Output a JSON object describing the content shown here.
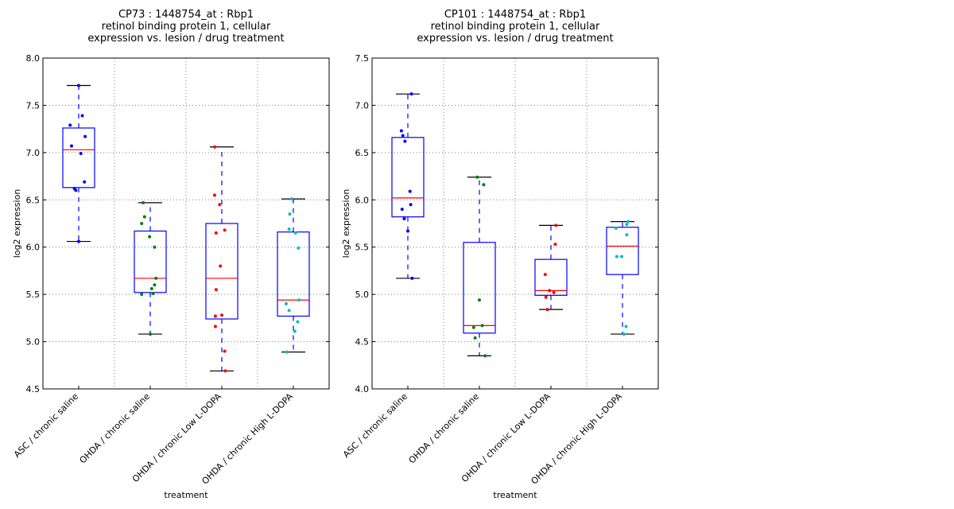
{
  "chart_data": [
    {
      "type": "box",
      "title_lines": [
        "CP73 : 1448754_at : Rbp1",
        "retinol binding protein 1, cellular",
        "expression vs. lesion / drug treatment"
      ],
      "xlabel": "treatment",
      "ylabel": "log2 expression",
      "ylim": [
        4.5,
        8.0
      ],
      "yticks": [
        "4.5",
        "5.0",
        "5.5",
        "6.0",
        "6.5",
        "7.0",
        "7.5",
        "8.0"
      ],
      "grid": true,
      "categories": [
        "ASC / chronic saline",
        "OHDA / chronic saline",
        "OHDA / chronic Low L-DOPA",
        "OHDA / chronic High L-DOPA"
      ],
      "groups": [
        {
          "color": "#0000ff",
          "whisker_low": 6.06,
          "q1": 6.63,
          "median": 7.03,
          "q3": 7.26,
          "whisker_high": 7.71,
          "points": [
            [
              0.0,
              7.71
            ],
            [
              0.05,
              7.39
            ],
            [
              -0.12,
              7.29
            ],
            [
              0.09,
              7.17
            ],
            [
              -0.1,
              7.07
            ],
            [
              0.03,
              6.99
            ],
            [
              0.08,
              6.69
            ],
            [
              -0.06,
              6.62
            ],
            [
              -0.04,
              6.6
            ],
            [
              0.0,
              6.06
            ]
          ]
        },
        {
          "color": "#008000",
          "whisker_low": 5.08,
          "q1": 5.52,
          "median": 5.67,
          "q3": 6.17,
          "whisker_high": 6.47,
          "points": [
            [
              -0.1,
              6.47
            ],
            [
              -0.08,
              6.32
            ],
            [
              -0.12,
              6.25
            ],
            [
              -0.01,
              6.11
            ],
            [
              0.06,
              6.0
            ],
            [
              0.08,
              5.67
            ],
            [
              0.06,
              5.6
            ],
            [
              0.02,
              5.56
            ],
            [
              -0.12,
              5.5
            ],
            [
              0.04,
              5.51
            ],
            [
              0.0,
              5.08
            ]
          ]
        },
        {
          "color": "#ff0000",
          "whisker_low": 4.69,
          "q1": 5.24,
          "median": 5.67,
          "q3": 6.25,
          "whisker_high": 7.06,
          "points": [
            [
              -0.1,
              7.06
            ],
            [
              -0.1,
              6.55
            ],
            [
              -0.03,
              6.45
            ],
            [
              0.04,
              6.18
            ],
            [
              -0.08,
              6.15
            ],
            [
              -0.02,
              5.8
            ],
            [
              -0.08,
              5.55
            ],
            [
              -0.09,
              5.27
            ],
            [
              0.0,
              5.28
            ],
            [
              -0.09,
              5.16
            ],
            [
              0.04,
              4.9
            ],
            [
              0.05,
              4.69
            ]
          ]
        },
        {
          "color": "#00bfbf",
          "whisker_low": 4.89,
          "q1": 5.27,
          "median": 5.44,
          "q3": 6.16,
          "whisker_high": 6.51,
          "points": [
            [
              -0.02,
              6.51
            ],
            [
              -0.05,
              6.35
            ],
            [
              -0.06,
              6.19
            ],
            [
              0.03,
              6.15
            ],
            [
              0.07,
              5.99
            ],
            [
              0.08,
              5.44
            ],
            [
              -0.1,
              5.4
            ],
            [
              -0.06,
              5.33
            ],
            [
              0.06,
              5.21
            ],
            [
              0.02,
              5.11
            ],
            [
              -0.09,
              4.89
            ]
          ]
        }
      ]
    },
    {
      "type": "box",
      "title_lines": [
        "CP101 : 1448754_at : Rbp1",
        "retinol binding protein 1, cellular",
        "expression vs. lesion / drug treatment"
      ],
      "xlabel": "treatment",
      "ylabel": "log2 expression",
      "ylim": [
        4.0,
        7.5
      ],
      "yticks": [
        "4.0",
        "4.5",
        "5.0",
        "5.5",
        "6.0",
        "6.5",
        "7.0",
        "7.5"
      ],
      "grid": true,
      "categories": [
        "ASC / chronic saline",
        "OHDA / chronic saline",
        "OHDA / chronic Low L-DOPA",
        "OHDA / chronic High L-DOPA"
      ],
      "groups": [
        {
          "color": "#0000ff",
          "whisker_low": 5.17,
          "q1": 5.82,
          "median": 6.02,
          "q3": 6.66,
          "whisker_high": 7.12,
          "points": [
            [
              0.05,
              7.12
            ],
            [
              -0.09,
              6.73
            ],
            [
              -0.07,
              6.68
            ],
            [
              -0.04,
              6.62
            ],
            [
              0.03,
              6.09
            ],
            [
              -0.08,
              5.9
            ],
            [
              0.04,
              5.95
            ],
            [
              -0.05,
              5.8
            ],
            [
              0.0,
              5.67
            ],
            [
              0.06,
              5.17
            ]
          ]
        },
        {
          "color": "#008000",
          "whisker_low": 4.35,
          "q1": 4.59,
          "median": 4.67,
          "q3": 5.55,
          "whisker_high": 6.24,
          "points": [
            [
              -0.03,
              6.24
            ],
            [
              0.06,
              6.16
            ],
            [
              0.0,
              4.94
            ],
            [
              -0.08,
              4.65
            ],
            [
              0.04,
              4.67
            ],
            [
              -0.06,
              4.54
            ],
            [
              0.08,
              4.35
            ]
          ]
        },
        {
          "color": "#ff0000",
          "whisker_low": 4.84,
          "q1": 4.99,
          "median": 5.04,
          "q3": 5.37,
          "whisker_high": 5.73,
          "points": [
            [
              0.07,
              5.73
            ],
            [
              0.06,
              5.53
            ],
            [
              -0.08,
              5.21
            ],
            [
              -0.02,
              5.04
            ],
            [
              0.04,
              5.02
            ],
            [
              -0.07,
              4.97
            ],
            [
              -0.05,
              4.84
            ]
          ]
        },
        {
          "color": "#00bfbf",
          "whisker_low": 4.58,
          "q1": 5.21,
          "median": 5.51,
          "q3": 5.71,
          "whisker_high": 5.77,
          "points": [
            [
              0.08,
              5.77
            ],
            [
              0.06,
              5.74
            ],
            [
              -0.09,
              5.7
            ],
            [
              0.06,
              5.63
            ],
            [
              -0.08,
              5.4
            ],
            [
              -0.01,
              5.4
            ],
            [
              0.05,
              4.66
            ],
            [
              0.02,
              4.58
            ]
          ]
        }
      ]
    }
  ]
}
